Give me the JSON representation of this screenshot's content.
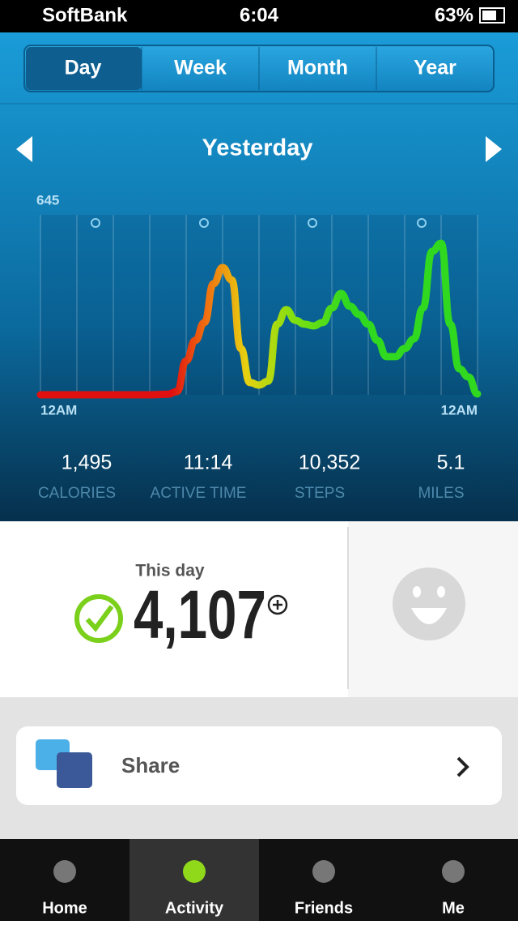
{
  "status_bar": {
    "carrier": "SoftBank",
    "time": "6:04",
    "battery": "63%"
  },
  "period_tabs": {
    "items": [
      "Day",
      "Week",
      "Month",
      "Year"
    ],
    "selected": 0
  },
  "date_label": "Yesterday",
  "activity_graph": {
    "type": "line",
    "xlim": [
      0,
      24
    ],
    "ylim": [
      0,
      645
    ],
    "yticks": [
      645
    ],
    "xticks": [
      {
        "value": 0,
        "label": "12AM"
      },
      {
        "value": 24,
        "label": "12AM"
      }
    ],
    "x": [
      0,
      2,
      4,
      6,
      7,
      7.5,
      8,
      8.5,
      9,
      9.5,
      10,
      10.5,
      11,
      11.5,
      12,
      12.5,
      13,
      13.5,
      14,
      14.5,
      15,
      15.5,
      16,
      16.5,
      17,
      17.5,
      18,
      18.5,
      19,
      19.5,
      20,
      20.5,
      21,
      21.5,
      22,
      22.5,
      23,
      23.5,
      24
    ],
    "values": [
      0,
      0,
      0,
      0,
      2,
      12,
      122,
      195,
      259,
      398,
      456,
      412,
      166,
      44,
      35,
      49,
      253,
      305,
      267,
      253,
      247,
      259,
      311,
      363,
      317,
      288,
      253,
      195,
      137,
      137,
      166,
      200,
      311,
      514,
      543,
      253,
      93,
      64,
      3
    ]
  },
  "stats": [
    {
      "value": "1,495",
      "label": "CALORIES"
    },
    {
      "value": "11:14",
      "label": "ACTIVE TIME"
    },
    {
      "value": "10,352",
      "label": "STEPS"
    },
    {
      "value": "5.1",
      "label": "MILES"
    }
  ],
  "today": {
    "label": "This day",
    "points": "4,107"
  },
  "share": "Share",
  "tab_bar": {
    "items": [
      "Home",
      "Activity",
      "Friends",
      "Me"
    ],
    "selected": 1
  }
}
